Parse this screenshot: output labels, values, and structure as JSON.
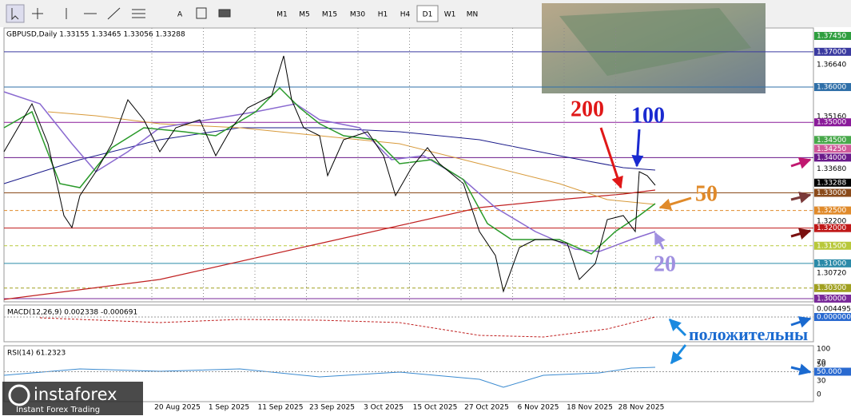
{
  "toolbar": {
    "timeframes": [
      "M1",
      "M5",
      "M15",
      "M30",
      "H1",
      "H4",
      "D1",
      "W1",
      "MN"
    ],
    "active": "D1"
  },
  "chart": {
    "header": "GBPUSD,Daily  1.33155 1.33465 1.33056 1.33288",
    "price_levels": [
      {
        "value": 1.3745,
        "label": "1.37450",
        "color": "#2e9e3e",
        "line": "none"
      },
      {
        "value": 1.37,
        "label": "1.37000",
        "color": "#3a3aa0",
        "line": "solid"
      },
      {
        "value": 1.3664,
        "label": "1.36640",
        "color": "none",
        "line": "none"
      },
      {
        "value": 1.36,
        "label": "1.36000",
        "color": "#2f6fa8",
        "line": "solid"
      },
      {
        "value": 1.3516,
        "label": "1.35160",
        "color": "none",
        "line": "none"
      },
      {
        "value": 1.35,
        "label": "1.35000",
        "color": "#8a1a9a",
        "line": "solid"
      },
      {
        "value": 1.345,
        "label": "1.34500",
        "color": "#47a84a",
        "line": "none"
      },
      {
        "value": 1.3425,
        "label": "1.34250",
        "color": "#d05a9a",
        "line": "none"
      },
      {
        "value": 1.34,
        "label": "1.34000",
        "color": "#6a1a8a",
        "line": "solid"
      },
      {
        "value": 1.3368,
        "label": "1.33680",
        "color": "none",
        "line": "none"
      },
      {
        "value": 1.33288,
        "label": "1.33288",
        "color": "#000000",
        "line": "none"
      },
      {
        "value": 1.33,
        "label": "1.33000",
        "color": "#8a4a1a",
        "line": "solid"
      },
      {
        "value": 1.325,
        "label": "1.32500",
        "color": "#e08a2a",
        "line": "dashed"
      },
      {
        "value": 1.322,
        "label": "1.32200",
        "color": "none",
        "line": "none"
      },
      {
        "value": 1.32,
        "label": "1.32000",
        "color": "#c01818",
        "line": "solid"
      },
      {
        "value": 1.315,
        "label": "1.31500",
        "color": "#b8c83a",
        "line": "dashed"
      },
      {
        "value": 1.31,
        "label": "1.31000",
        "color": "#2a8aa8",
        "line": "solid"
      },
      {
        "value": 1.3072,
        "label": "1.30720",
        "color": "none",
        "line": "none"
      },
      {
        "value": 1.303,
        "label": "1.30300",
        "color": "#a0a020",
        "line": "dashed"
      },
      {
        "value": 1.3,
        "label": "1.30000",
        "color": "#7a2a9a",
        "line": "solid"
      }
    ]
  },
  "macd": {
    "label": "MACD(12,26,9) 0.002338 -0.000691",
    "axis": [
      "0.004495",
      "0.000000"
    ]
  },
  "rsi": {
    "label": "RSI(14) 61.2323",
    "ticks": [
      100,
      70,
      50,
      30,
      0
    ],
    "level": {
      "value": 50,
      "label": "50.000"
    }
  },
  "dates": [
    "20 Aug 2025",
    "1 Sep 2025",
    "11 Sep 2025",
    "23 Sep 2025",
    "3 Oct 2025",
    "15 Oct 2025",
    "27 Oct 2025",
    "6 Nov 2025",
    "18 Nov 2025",
    "28 Nov 2025"
  ],
  "annotations": {
    "ma200": "200",
    "ma100": "100",
    "ma50": "50",
    "ma20": "20",
    "positive": "положительны"
  },
  "logo": {
    "name": "instaforex",
    "tagline": "Instant Forex Trading"
  }
}
